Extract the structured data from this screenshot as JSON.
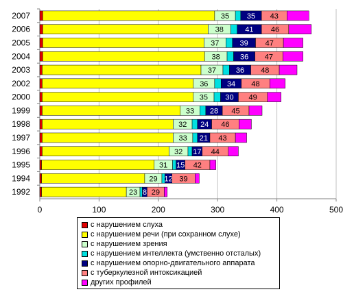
{
  "chart_data": {
    "type": "bar",
    "orientation": "horizontal",
    "stacked": true,
    "categories": [
      "2007",
      "2006",
      "2005",
      "2004",
      "2003",
      "2002",
      "2000",
      "1999",
      "1998",
      "1997",
      "1996",
      "1995",
      "1994",
      "1992"
    ],
    "xlim": [
      0,
      500
    ],
    "xticks": [
      "0",
      "100",
      "200",
      "300",
      "400",
      "500"
    ],
    "grid": "vertical",
    "series": [
      {
        "name": "с нарушением слуха",
        "color": "#e00000",
        "values": [
          5,
          5,
          5,
          5,
          4,
          4,
          4,
          4,
          4,
          4,
          4,
          3,
          3,
          3
        ],
        "labels": [
          "",
          "",
          "",
          "",
          "",
          "",
          "",
          "",
          "",
          "",
          "",
          "",
          "",
          ""
        ]
      },
      {
        "name": "с нарушением речи (при сохранном слухе)",
        "color": "#ffff00",
        "values": [
          290,
          279,
          272,
          273,
          268,
          255,
          255,
          233,
          221,
          221,
          214,
          190,
          174,
          143
        ],
        "labels": [
          "",
          "",
          "",
          "",
          "",
          "",
          "",
          "",
          "",
          "",
          "",
          "",
          "",
          ""
        ]
      },
      {
        "name": "с нарушением зрения",
        "color": "#ccffcc",
        "values": [
          35,
          38,
          37,
          38,
          37,
          36,
          35,
          33,
          32,
          33,
          32,
          31,
          29,
          23
        ],
        "labels": [
          "35",
          "38",
          "37",
          "38",
          "37",
          "36",
          "35",
          "33",
          "32",
          "33",
          "32",
          "31",
          "29",
          "23"
        ]
      },
      {
        "name": "с нарушением интеллекта (умственно отсталых)",
        "color": "#00e0e0",
        "values": [
          9,
          11,
          11,
          11,
          11,
          11,
          11,
          10,
          9,
          8,
          7,
          6,
          5,
          4
        ],
        "labels": [
          "",
          "",
          "",
          "",
          "",
          "",
          "",
          "",
          "",
          "",
          "",
          "",
          "",
          ""
        ]
      },
      {
        "name": "с нарушением опорно-двигательного аппарата",
        "color": "#000080",
        "values": [
          35,
          41,
          39,
          36,
          36,
          34,
          30,
          28,
          24,
          21,
          17,
          15,
          12,
          8
        ],
        "labels": [
          "35",
          "41",
          "39",
          "36",
          "36",
          "34",
          "30",
          "28",
          "24",
          "21",
          "17",
          "15",
          "12",
          "8"
        ]
      },
      {
        "name": "с туберкулезной интоксикацией",
        "color": "#ff8080",
        "values": [
          43,
          46,
          47,
          47,
          48,
          48,
          49,
          45,
          46,
          43,
          44,
          42,
          39,
          29
        ],
        "labels": [
          "43",
          "46",
          "47",
          "47",
          "48",
          "48",
          "49",
          "45",
          "46",
          "43",
          "44",
          "42",
          "39",
          "29"
        ]
      },
      {
        "name": "других профилей",
        "color": "#ff00ff",
        "values": [
          37,
          38,
          33,
          34,
          30,
          26,
          23,
          22,
          21,
          19,
          17,
          10,
          7,
          5
        ],
        "labels": [
          "",
          "",
          "",
          "",
          "",
          "",
          "",
          "",
          "",
          "",
          "",
          "",
          "",
          ""
        ]
      }
    ]
  }
}
